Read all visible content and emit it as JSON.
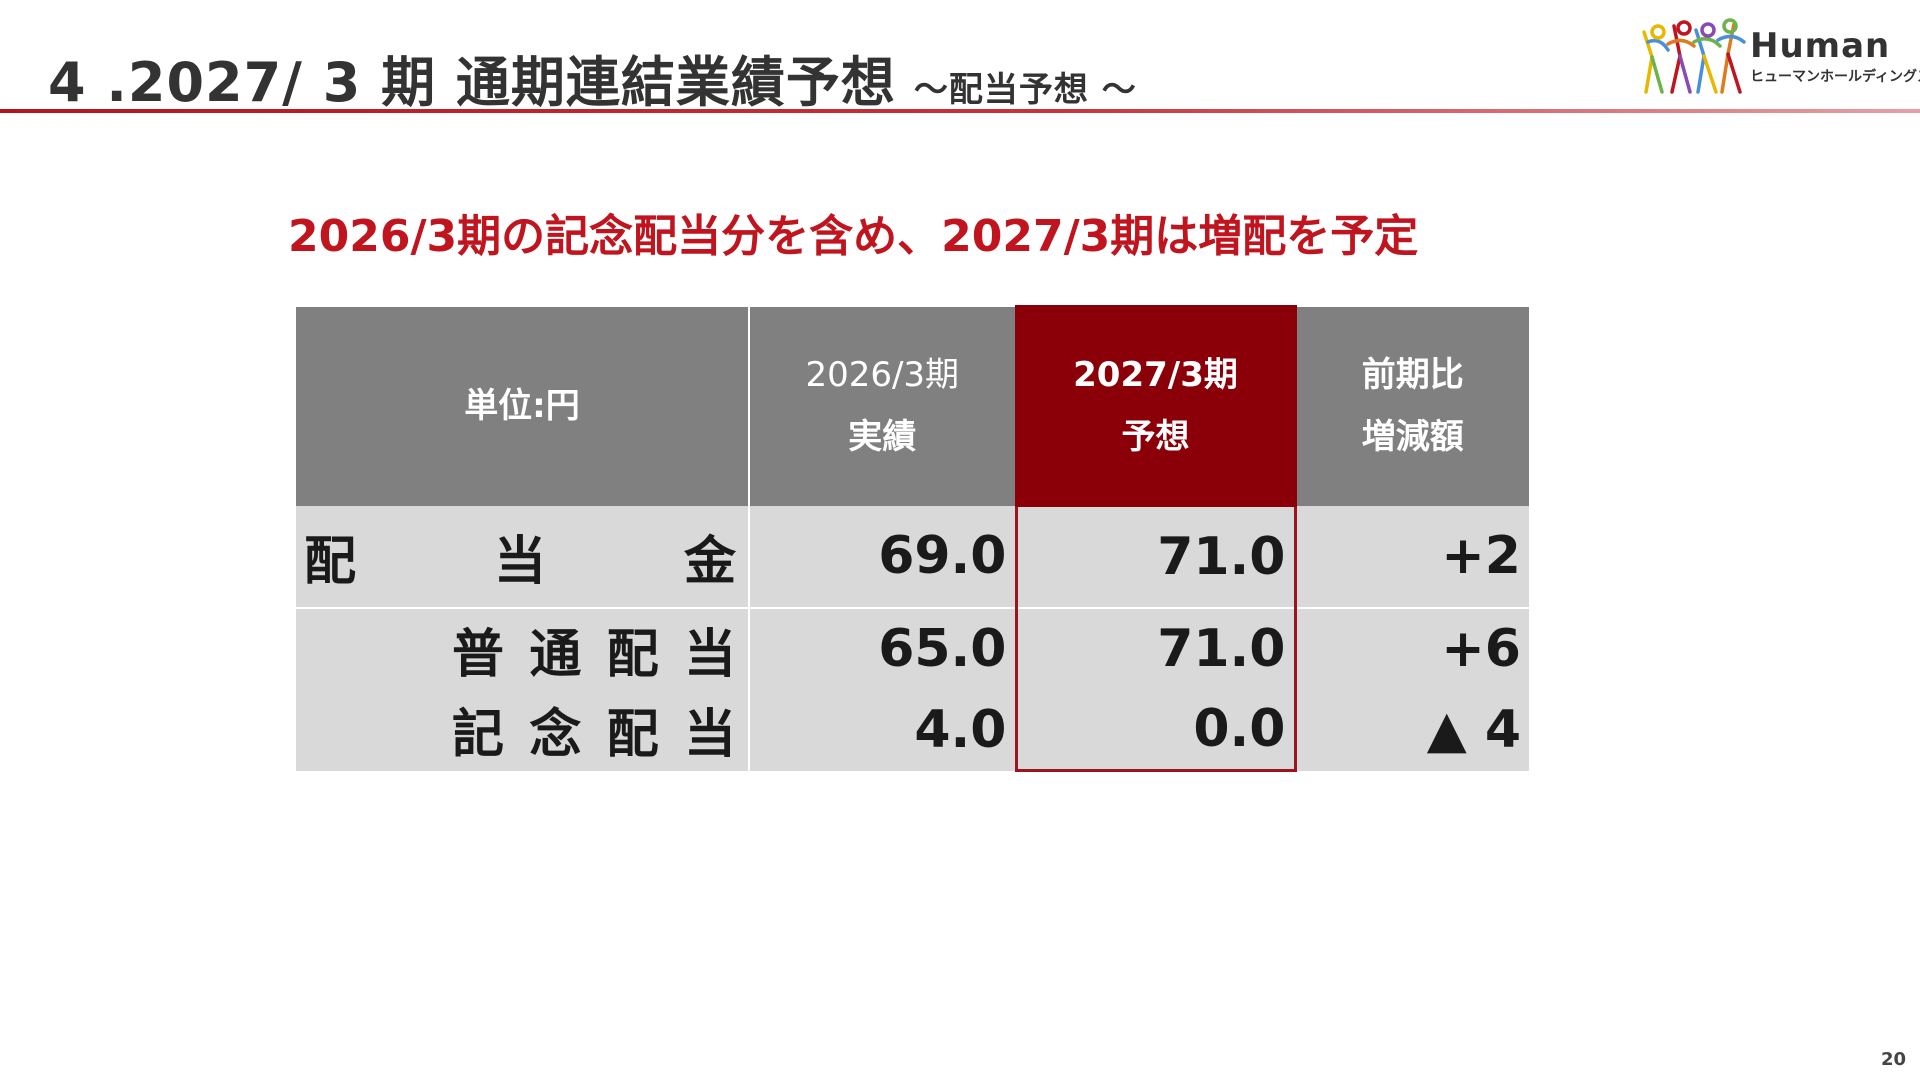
{
  "header": {
    "title": "4 .2027/ 3 期 通期連結業績予想",
    "subtitle": "～配当予想 ～",
    "logo_text": "Human",
    "logo_kana": "ヒューマンホールディングス"
  },
  "headline": "2026/3期の記念配当分を含め、2027/3期は増配を予定",
  "table": {
    "unit_label": "単位:円",
    "col_actual_line1": "2026/3期",
    "col_actual_line2": "実績",
    "col_forecast_line1": "2027/3期",
    "col_forecast_line2": "予想",
    "col_change_line1": "前期比",
    "col_change_line2": "増減額",
    "rows": [
      {
        "label_chars": [
          "配",
          "当",
          "金"
        ],
        "actual": "69.0",
        "forecast": "71.0",
        "change": "+2"
      },
      {
        "label_chars": [
          "普",
          "通",
          "配",
          "当"
        ],
        "actual": "65.0",
        "forecast": "71.0",
        "change": "+6"
      },
      {
        "label_chars": [
          "記",
          "念",
          "配",
          "当"
        ],
        "actual": "4.0",
        "forecast": "0.0",
        "change": "▲ 4"
      }
    ]
  },
  "colors": {
    "accent_red": "#c0141e",
    "header_gray": "#808080",
    "highlight_dark_red": "#8b0008",
    "cell_gray": "#d9d9d9"
  },
  "page_number": "20"
}
